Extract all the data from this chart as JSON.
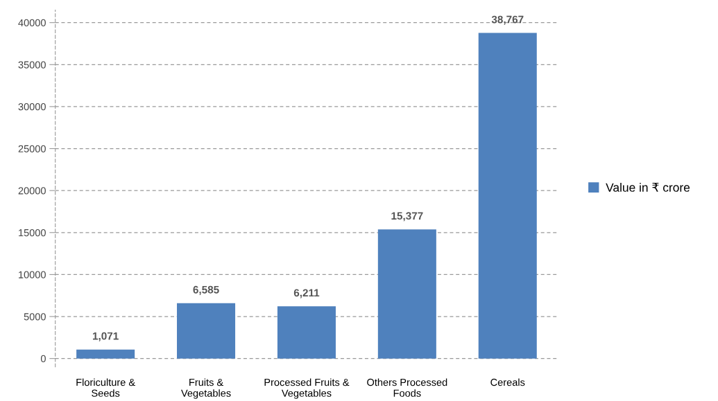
{
  "chart_data": {
    "type": "bar",
    "categories": [
      "Floriculture &\nSeeds",
      "Fruits &\nVegetables",
      "Processed Fruits &\nVegetables",
      "Others Processed\nFoods",
      "Cereals"
    ],
    "series": [
      {
        "name": "Value in ₹ crore",
        "color": "#4f81bd",
        "values": [
          1071,
          6585,
          6211,
          15377,
          38767
        ],
        "value_labels": [
          "1,071",
          "6,585",
          "6,211",
          "15,377",
          "38,767"
        ]
      }
    ],
    "ylim": [
      -1000,
      41500
    ],
    "yticks": [
      0,
      5000,
      10000,
      15000,
      20000,
      25000,
      30000,
      35000,
      40000
    ],
    "grid": "y",
    "legend": "right"
  }
}
